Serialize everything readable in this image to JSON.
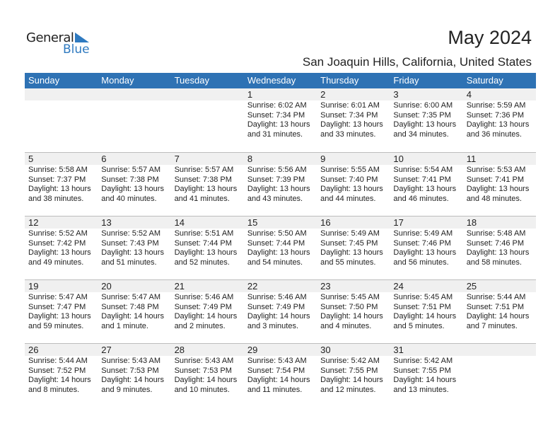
{
  "logo": {
    "text1": "General",
    "text2": "Blue"
  },
  "title": "May 2024",
  "location": "San Joaquin Hills, California, United States",
  "colors": {
    "header": "#2e72b4",
    "date_row": "#f0f0f0"
  },
  "weekdays": [
    "Sunday",
    "Monday",
    "Tuesday",
    "Wednesday",
    "Thursday",
    "Friday",
    "Saturday"
  ],
  "weeks": [
    [
      null,
      null,
      null,
      {
        "day": "1",
        "sunrise": "Sunrise: 6:02 AM",
        "sunset": "Sunset: 7:34 PM",
        "daylight1": "Daylight: 13 hours",
        "daylight2": "and 31 minutes."
      },
      {
        "day": "2",
        "sunrise": "Sunrise: 6:01 AM",
        "sunset": "Sunset: 7:34 PM",
        "daylight1": "Daylight: 13 hours",
        "daylight2": "and 33 minutes."
      },
      {
        "day": "3",
        "sunrise": "Sunrise: 6:00 AM",
        "sunset": "Sunset: 7:35 PM",
        "daylight1": "Daylight: 13 hours",
        "daylight2": "and 34 minutes."
      },
      {
        "day": "4",
        "sunrise": "Sunrise: 5:59 AM",
        "sunset": "Sunset: 7:36 PM",
        "daylight1": "Daylight: 13 hours",
        "daylight2": "and 36 minutes."
      }
    ],
    [
      {
        "day": "5",
        "sunrise": "Sunrise: 5:58 AM",
        "sunset": "Sunset: 7:37 PM",
        "daylight1": "Daylight: 13 hours",
        "daylight2": "and 38 minutes."
      },
      {
        "day": "6",
        "sunrise": "Sunrise: 5:57 AM",
        "sunset": "Sunset: 7:38 PM",
        "daylight1": "Daylight: 13 hours",
        "daylight2": "and 40 minutes."
      },
      {
        "day": "7",
        "sunrise": "Sunrise: 5:57 AM",
        "sunset": "Sunset: 7:38 PM",
        "daylight1": "Daylight: 13 hours",
        "daylight2": "and 41 minutes."
      },
      {
        "day": "8",
        "sunrise": "Sunrise: 5:56 AM",
        "sunset": "Sunset: 7:39 PM",
        "daylight1": "Daylight: 13 hours",
        "daylight2": "and 43 minutes."
      },
      {
        "day": "9",
        "sunrise": "Sunrise: 5:55 AM",
        "sunset": "Sunset: 7:40 PM",
        "daylight1": "Daylight: 13 hours",
        "daylight2": "and 44 minutes."
      },
      {
        "day": "10",
        "sunrise": "Sunrise: 5:54 AM",
        "sunset": "Sunset: 7:41 PM",
        "daylight1": "Daylight: 13 hours",
        "daylight2": "and 46 minutes."
      },
      {
        "day": "11",
        "sunrise": "Sunrise: 5:53 AM",
        "sunset": "Sunset: 7:41 PM",
        "daylight1": "Daylight: 13 hours",
        "daylight2": "and 48 minutes."
      }
    ],
    [
      {
        "day": "12",
        "sunrise": "Sunrise: 5:52 AM",
        "sunset": "Sunset: 7:42 PM",
        "daylight1": "Daylight: 13 hours",
        "daylight2": "and 49 minutes."
      },
      {
        "day": "13",
        "sunrise": "Sunrise: 5:52 AM",
        "sunset": "Sunset: 7:43 PM",
        "daylight1": "Daylight: 13 hours",
        "daylight2": "and 51 minutes."
      },
      {
        "day": "14",
        "sunrise": "Sunrise: 5:51 AM",
        "sunset": "Sunset: 7:44 PM",
        "daylight1": "Daylight: 13 hours",
        "daylight2": "and 52 minutes."
      },
      {
        "day": "15",
        "sunrise": "Sunrise: 5:50 AM",
        "sunset": "Sunset: 7:44 PM",
        "daylight1": "Daylight: 13 hours",
        "daylight2": "and 54 minutes."
      },
      {
        "day": "16",
        "sunrise": "Sunrise: 5:49 AM",
        "sunset": "Sunset: 7:45 PM",
        "daylight1": "Daylight: 13 hours",
        "daylight2": "and 55 minutes."
      },
      {
        "day": "17",
        "sunrise": "Sunrise: 5:49 AM",
        "sunset": "Sunset: 7:46 PM",
        "daylight1": "Daylight: 13 hours",
        "daylight2": "and 56 minutes."
      },
      {
        "day": "18",
        "sunrise": "Sunrise: 5:48 AM",
        "sunset": "Sunset: 7:46 PM",
        "daylight1": "Daylight: 13 hours",
        "daylight2": "and 58 minutes."
      }
    ],
    [
      {
        "day": "19",
        "sunrise": "Sunrise: 5:47 AM",
        "sunset": "Sunset: 7:47 PM",
        "daylight1": "Daylight: 13 hours",
        "daylight2": "and 59 minutes."
      },
      {
        "day": "20",
        "sunrise": "Sunrise: 5:47 AM",
        "sunset": "Sunset: 7:48 PM",
        "daylight1": "Daylight: 14 hours",
        "daylight2": "and 1 minute."
      },
      {
        "day": "21",
        "sunrise": "Sunrise: 5:46 AM",
        "sunset": "Sunset: 7:49 PM",
        "daylight1": "Daylight: 14 hours",
        "daylight2": "and 2 minutes."
      },
      {
        "day": "22",
        "sunrise": "Sunrise: 5:46 AM",
        "sunset": "Sunset: 7:49 PM",
        "daylight1": "Daylight: 14 hours",
        "daylight2": "and 3 minutes."
      },
      {
        "day": "23",
        "sunrise": "Sunrise: 5:45 AM",
        "sunset": "Sunset: 7:50 PM",
        "daylight1": "Daylight: 14 hours",
        "daylight2": "and 4 minutes."
      },
      {
        "day": "24",
        "sunrise": "Sunrise: 5:45 AM",
        "sunset": "Sunset: 7:51 PM",
        "daylight1": "Daylight: 14 hours",
        "daylight2": "and 5 minutes."
      },
      {
        "day": "25",
        "sunrise": "Sunrise: 5:44 AM",
        "sunset": "Sunset: 7:51 PM",
        "daylight1": "Daylight: 14 hours",
        "daylight2": "and 7 minutes."
      }
    ],
    [
      {
        "day": "26",
        "sunrise": "Sunrise: 5:44 AM",
        "sunset": "Sunset: 7:52 PM",
        "daylight1": "Daylight: 14 hours",
        "daylight2": "and 8 minutes."
      },
      {
        "day": "27",
        "sunrise": "Sunrise: 5:43 AM",
        "sunset": "Sunset: 7:53 PM",
        "daylight1": "Daylight: 14 hours",
        "daylight2": "and 9 minutes."
      },
      {
        "day": "28",
        "sunrise": "Sunrise: 5:43 AM",
        "sunset": "Sunset: 7:53 PM",
        "daylight1": "Daylight: 14 hours",
        "daylight2": "and 10 minutes."
      },
      {
        "day": "29",
        "sunrise": "Sunrise: 5:43 AM",
        "sunset": "Sunset: 7:54 PM",
        "daylight1": "Daylight: 14 hours",
        "daylight2": "and 11 minutes."
      },
      {
        "day": "30",
        "sunrise": "Sunrise: 5:42 AM",
        "sunset": "Sunset: 7:55 PM",
        "daylight1": "Daylight: 14 hours",
        "daylight2": "and 12 minutes."
      },
      {
        "day": "31",
        "sunrise": "Sunrise: 5:42 AM",
        "sunset": "Sunset: 7:55 PM",
        "daylight1": "Daylight: 14 hours",
        "daylight2": "and 13 minutes."
      },
      null
    ]
  ]
}
